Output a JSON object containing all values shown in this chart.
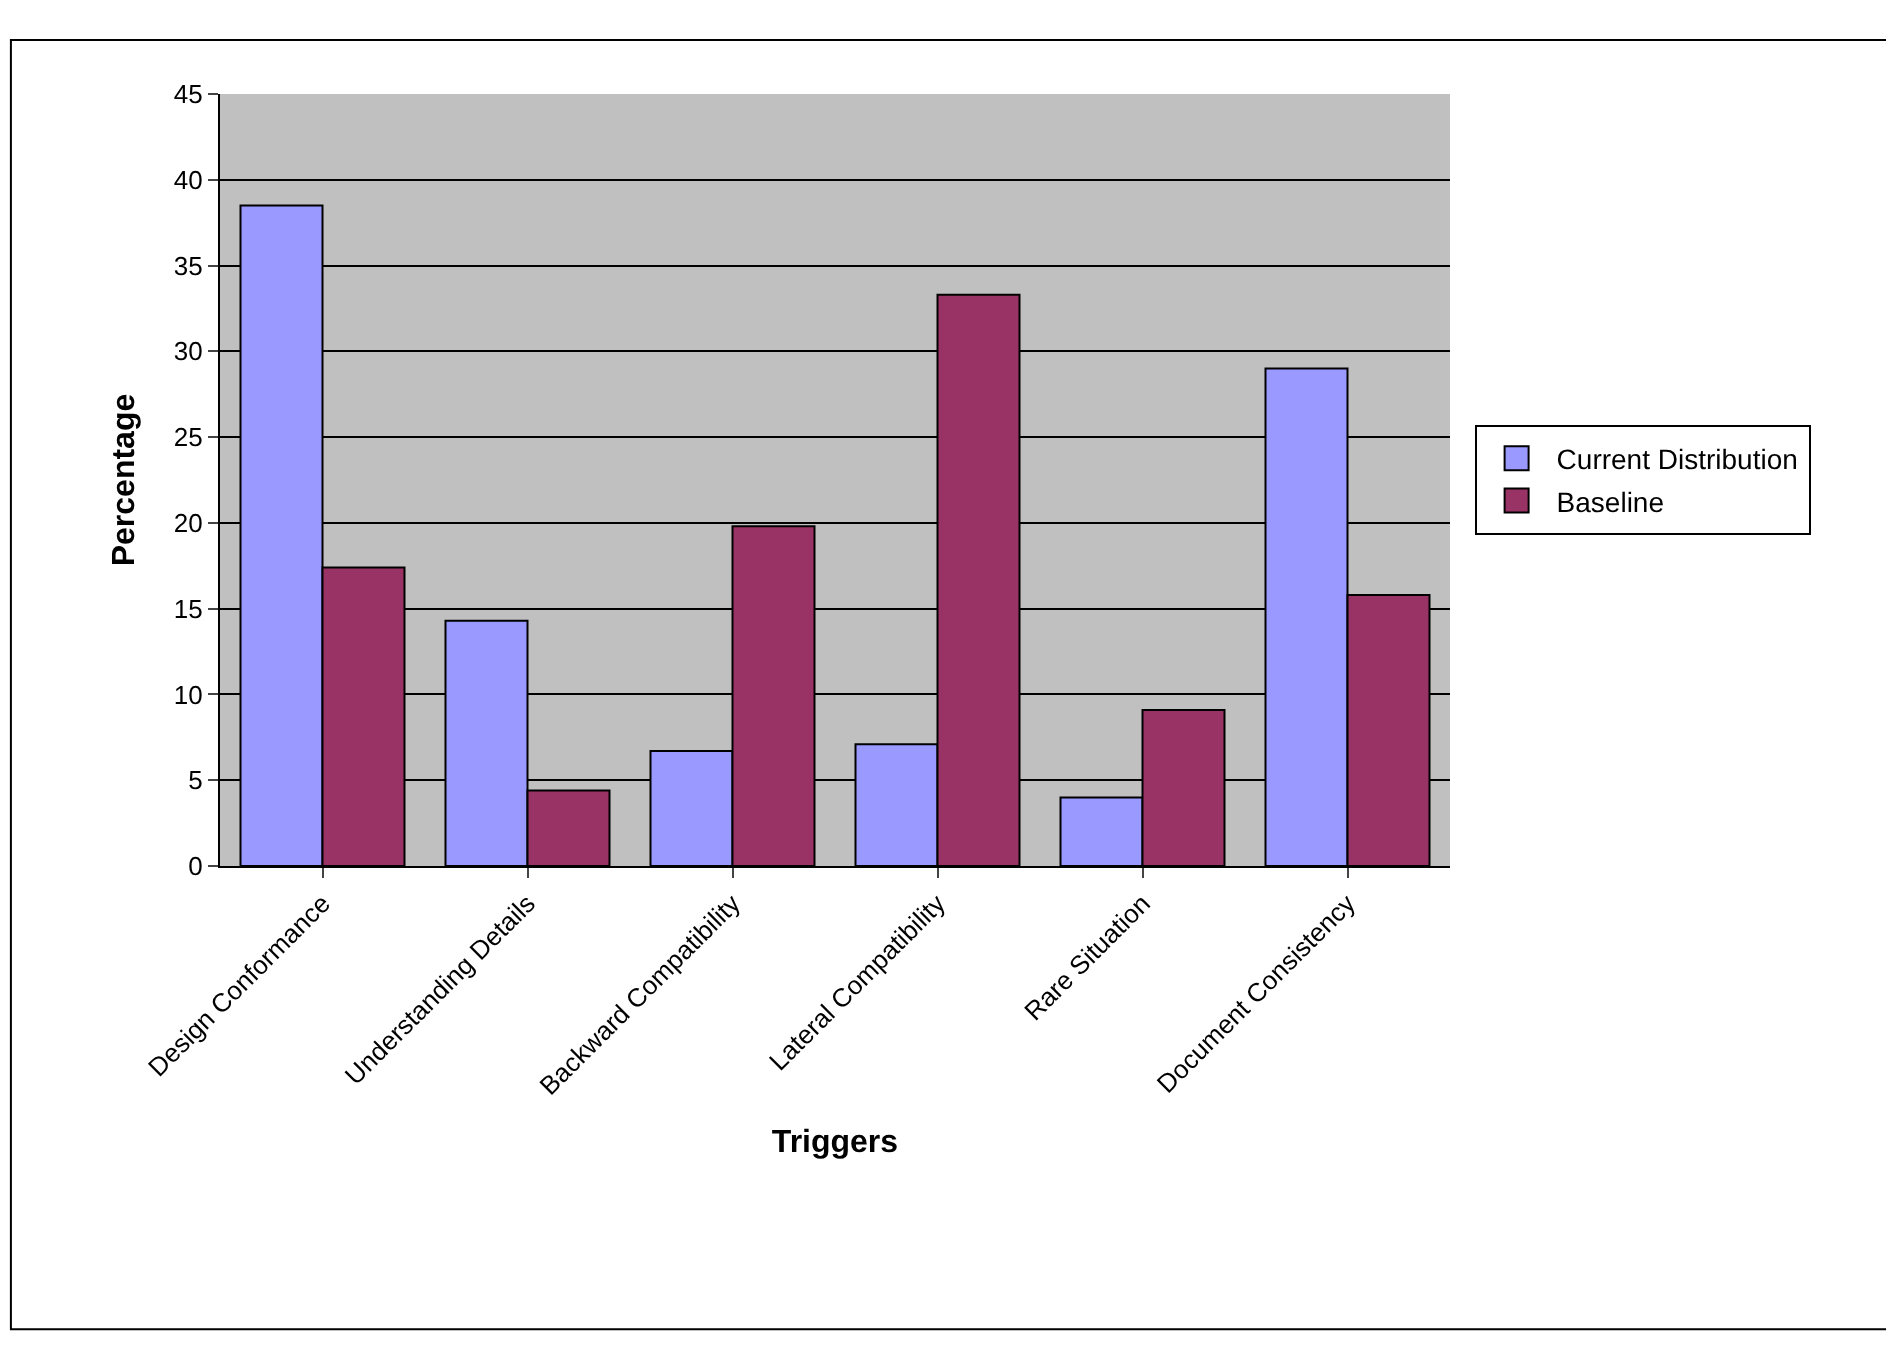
{
  "chart_data": {
    "type": "bar",
    "xlabel": "Triggers",
    "ylabel": "Percentage",
    "categories": [
      "Design Conformance",
      "Understanding Details",
      "Backward Compatibility",
      "Lateral Compatibility",
      "Rare Situation",
      "Document Consistency"
    ],
    "series": [
      {
        "name": "Current Distribution",
        "color": "#9999ff",
        "values": [
          38.5,
          14.3,
          6.7,
          7.1,
          4.0,
          29.0
        ]
      },
      {
        "name": "Baseline",
        "color": "#993366",
        "values": [
          17.4,
          4.4,
          19.8,
          33.3,
          9.1,
          15.8
        ]
      }
    ],
    "ylim": [
      0,
      45
    ],
    "yticks": [
      0,
      5,
      10,
      15,
      20,
      25,
      30,
      35,
      40,
      45
    ],
    "grid": "y",
    "legend": "right"
  }
}
